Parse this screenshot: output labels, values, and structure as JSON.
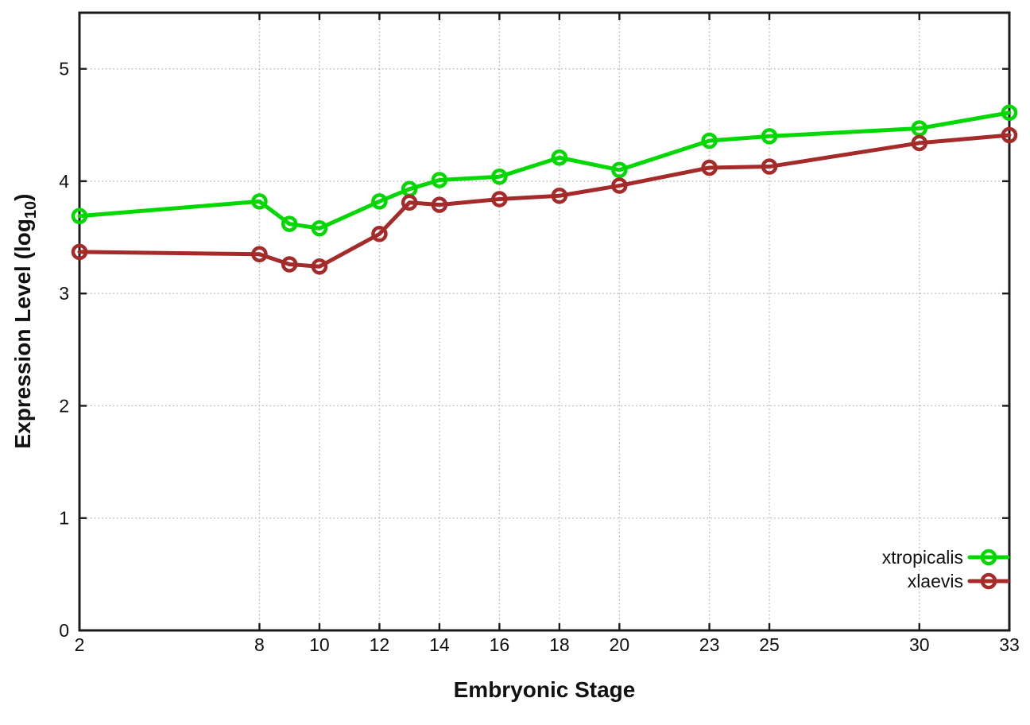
{
  "colors": {
    "background": "#ffffff",
    "grid": "#b5b5b5",
    "frame": "#1c1c1c",
    "text": "#111111"
  },
  "chart_data": {
    "type": "line",
    "title": "",
    "xlabel": "Embryonic Stage",
    "ylabel": "Expression Level (log10)",
    "ylabel_parts": [
      "Expression Level (log",
      "10",
      ")"
    ],
    "xlim": [
      2,
      33
    ],
    "ylim": [
      0,
      5.5
    ],
    "x_ticks": [
      2,
      8,
      10,
      12,
      14,
      16,
      18,
      20,
      23,
      25,
      30,
      33
    ],
    "y_ticks": [
      0,
      1,
      2,
      3,
      4,
      5
    ],
    "grid": true,
    "legend_position": "inside-bottom-right",
    "x": [
      2,
      8,
      9,
      10,
      12,
      13,
      14,
      16,
      18,
      20,
      23,
      25,
      30,
      33
    ],
    "series": [
      {
        "name": "xtropicalis",
        "color": "#00d800",
        "marker": "open-circle",
        "values": [
          3.69,
          3.82,
          3.62,
          3.58,
          3.82,
          3.93,
          4.01,
          4.04,
          4.21,
          4.1,
          4.36,
          4.4,
          4.47,
          4.61
        ]
      },
      {
        "name": "xlaevis",
        "color": "#a52a2a",
        "marker": "open-circle",
        "values": [
          3.37,
          3.35,
          3.26,
          3.24,
          3.53,
          3.81,
          3.79,
          3.84,
          3.87,
          3.96,
          4.12,
          4.13,
          4.34,
          4.41
        ]
      }
    ]
  }
}
